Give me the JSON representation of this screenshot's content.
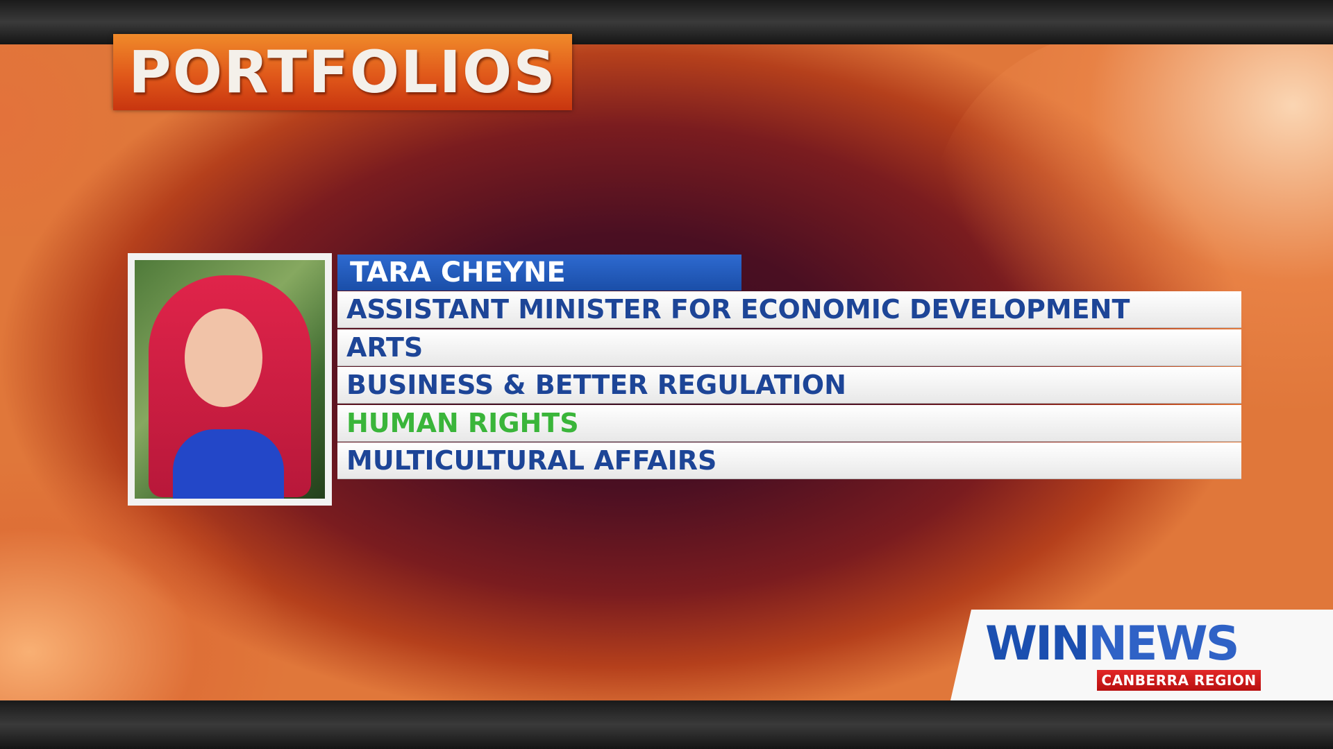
{
  "title": "PORTFOLIOS",
  "profile": {
    "name": "TARA CHEYNE",
    "portfolios": [
      {
        "label": "ASSISTANT MINISTER FOR ECONOMIC DEVELOPMENT",
        "highlight": false
      },
      {
        "label": "ARTS",
        "highlight": false
      },
      {
        "label": "BUSINESS & BETTER REGULATION",
        "highlight": false
      },
      {
        "label": "HUMAN RIGHTS",
        "highlight": true
      },
      {
        "label": "MULTICULTURAL AFFAIRS",
        "highlight": false
      }
    ]
  },
  "logo": {
    "win": "WIN",
    "news": "NEWS",
    "region": "CANBERRA REGION"
  },
  "colors": {
    "title_bg": "#e0581a",
    "name_bar": "#1a4ea8",
    "row_text": "#1d4597",
    "highlight_text": "#3ab53a",
    "logo_red": "#c8161a"
  }
}
